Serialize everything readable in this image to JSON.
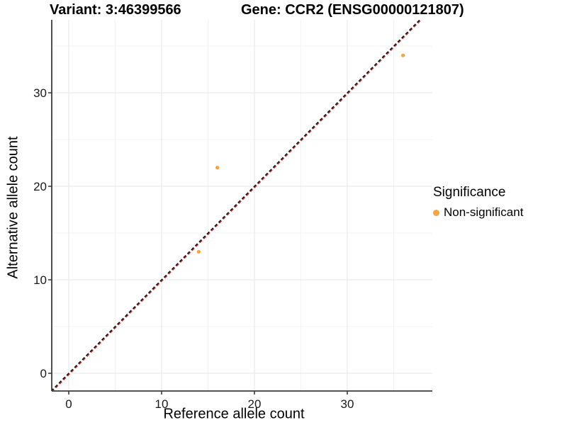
{
  "chart_data": {
    "type": "scatter",
    "titles": {
      "variant": "Variant: 3:46399566",
      "gene": "Gene: CCR2 (ENSG00000121807)"
    },
    "xlabel": "Reference allele count",
    "ylabel": "Alternative allele count",
    "x_ticks": [
      0,
      10,
      20,
      30
    ],
    "y_ticks": [
      0,
      10,
      20,
      30
    ],
    "x_minor_ticks": [
      5,
      15,
      25,
      35
    ],
    "y_minor_ticks": [
      5,
      15,
      25,
      35
    ],
    "xlim": [
      -1.9,
      38.9
    ],
    "ylim": [
      -1.9,
      37.8
    ],
    "series": [
      {
        "name": "Non-significant",
        "color": "#F7A440",
        "points": [
          {
            "x": 14,
            "y": 13
          },
          {
            "x": 16,
            "y": 22
          },
          {
            "x": 36,
            "y": 34
          }
        ]
      }
    ],
    "reference_line": {
      "equation": "y = x",
      "style": "dashed",
      "color_top": "#141414",
      "color_under": "#C12F2F"
    },
    "legend": {
      "title": "Significance",
      "position": "right",
      "entries": [
        {
          "label": "Non-significant",
          "color": "#F7A440"
        }
      ]
    },
    "grid": {
      "major": true,
      "minor": true
    },
    "colors": {
      "grid_major": "#E6E6E6",
      "grid_minor": "#F3F3F3",
      "axis": "#3C3C3C",
      "background": "#FFFFFF"
    }
  }
}
